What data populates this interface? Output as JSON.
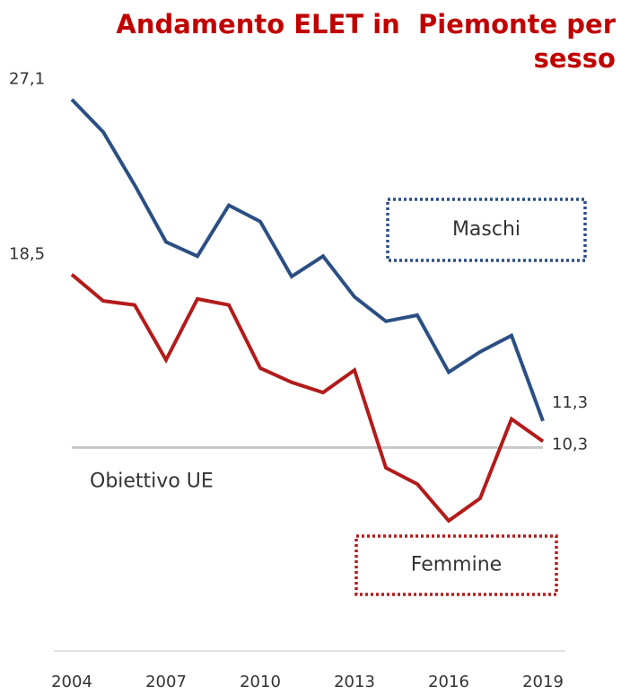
{
  "chart_data": {
    "type": "line",
    "title": "Andamento ELET in  Piemonte per sesso",
    "x": [
      2004,
      2005,
      2006,
      2007,
      2008,
      2009,
      2010,
      2011,
      2012,
      2013,
      2014,
      2015,
      2016,
      2017,
      2018,
      2019
    ],
    "xlim": [
      2004,
      2019
    ],
    "xticks": [
      2004,
      2007,
      2010,
      2013,
      2016,
      2019
    ],
    "ylim": [
      0,
      30
    ],
    "series": [
      {
        "name": "Maschi",
        "color": "#2b4f84",
        "values": [
          27.1,
          25.5,
          22.9,
          20.1,
          19.4,
          21.9,
          21.1,
          18.4,
          19.4,
          17.4,
          16.2,
          16.5,
          13.7,
          14.7,
          15.5,
          11.3
        ],
        "value_labels": [
          "27,1",
          null,
          null,
          null,
          null,
          null,
          null,
          null,
          null,
          null,
          null,
          null,
          null,
          null,
          null,
          "11,3"
        ]
      },
      {
        "name": "Femmine",
        "color": "#b31b1b",
        "values": [
          18.5,
          17.2,
          17.0,
          14.3,
          17.3,
          17.0,
          13.9,
          13.2,
          12.7,
          13.8,
          9.0,
          8.2,
          6.4,
          7.5,
          11.4,
          10.3
        ],
        "value_labels": [
          "18,5",
          null,
          null,
          null,
          null,
          null,
          null,
          null,
          null,
          null,
          null,
          null,
          null,
          null,
          null,
          "10,3"
        ]
      }
    ],
    "reference_line": {
      "value": 10,
      "label": "Obiettivo UE",
      "color": "#c8c8c8"
    }
  }
}
